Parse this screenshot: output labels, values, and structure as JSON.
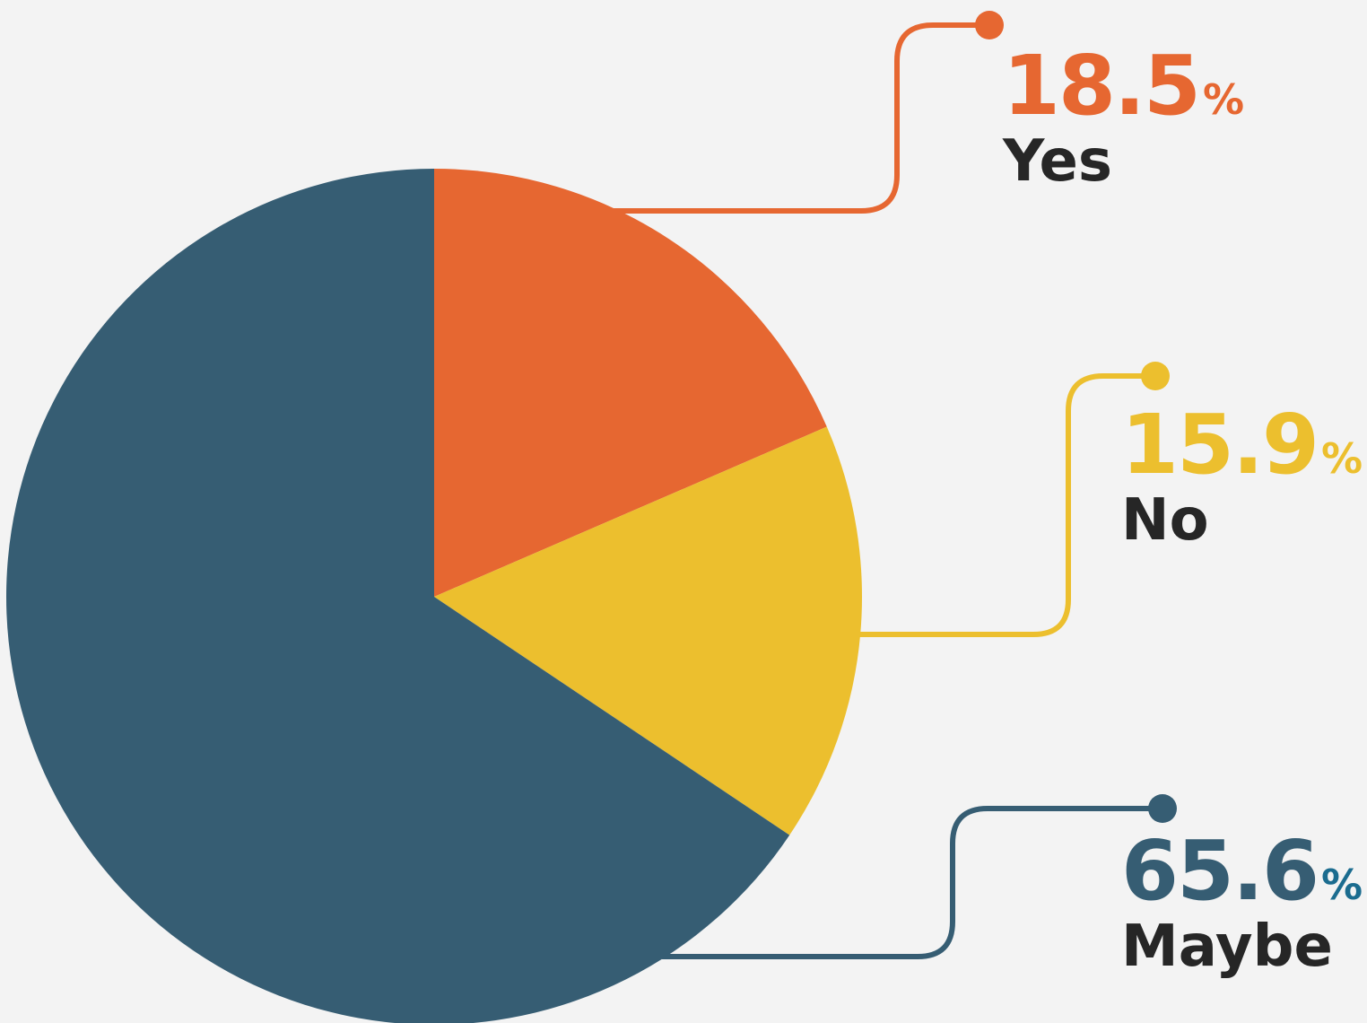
{
  "chart_data": {
    "type": "pie",
    "categories": [
      "Yes",
      "No",
      "Maybe"
    ],
    "values": [
      18.5,
      15.9,
      65.6
    ],
    "value_labels": [
      "18.5",
      "15.9",
      "65.6"
    ],
    "percent_sign": "%",
    "colors": [
      "#e66731",
      "#ecbf2e",
      "#365d73"
    ],
    "percent_sign_colors": [
      "#e66731",
      "#ecbf2e",
      "#1b6c8f"
    ],
    "start_angle": "12 o'clock",
    "direction": "clockwise",
    "legend": "callout labels on the right"
  }
}
